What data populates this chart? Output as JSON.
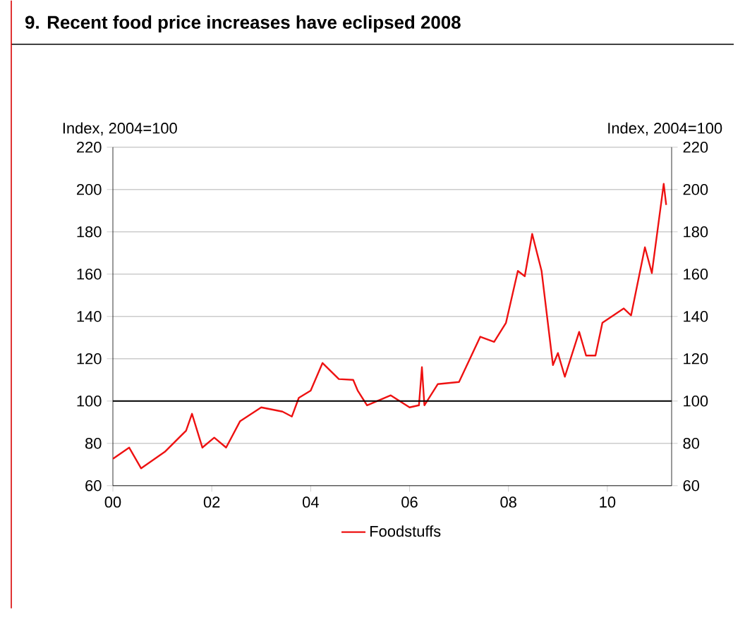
{
  "chart_data": {
    "type": "line",
    "title": "9. Recent food price increases have eclipsed 2008",
    "ylabel": "Index, 2004=100",
    "y2label": "Index, 2004=100",
    "x": [
      2000.0,
      2000.33,
      2000.57,
      2001.05,
      2001.48,
      2001.6,
      2001.81,
      2002.05,
      2002.29,
      2002.57,
      2003.0,
      2003.43,
      2003.62,
      2003.76,
      2004.0,
      2004.24,
      2004.57,
      2004.86,
      2004.95,
      2005.14,
      2005.62,
      2006.0,
      2006.19,
      2006.25,
      2006.3,
      2006.57,
      2007.0,
      2007.43,
      2007.71,
      2007.95,
      2008.19,
      2008.33,
      2008.48,
      2008.67,
      2008.9,
      2009.0,
      2009.14,
      2009.43,
      2009.57,
      2009.76,
      2009.9,
      2010.33,
      2010.48,
      2010.76,
      2010.9,
      2011.14,
      2011.19
    ],
    "series": [
      {
        "name": "Foodstuffs",
        "color": "#ee1111",
        "values": [
          72.7,
          78,
          68.2,
          76,
          86,
          94,
          78,
          82.7,
          78,
          90.4,
          97,
          95,
          92.7,
          101.5,
          104.9,
          118,
          110.4,
          110,
          105,
          98,
          102.7,
          97,
          98,
          116,
          98,
          108,
          109,
          130.4,
          128,
          137,
          161.5,
          159,
          179,
          161.5,
          117,
          122.7,
          111.5,
          132.7,
          121.5,
          121.5,
          137,
          143.8,
          140.5,
          172.7,
          160.5,
          202.7,
          192.7
        ]
      }
    ],
    "xlim": [
      2000,
      2011.3
    ],
    "xticks": [
      {
        "value": 2000,
        "label": "00"
      },
      {
        "value": 2002,
        "label": "02"
      },
      {
        "value": 2004,
        "label": "04"
      },
      {
        "value": 2006,
        "label": "06"
      },
      {
        "value": 2008,
        "label": "08"
      },
      {
        "value": 2010,
        "label": "10"
      }
    ],
    "ylim": [
      60,
      220
    ],
    "yticks": [
      60,
      80,
      100,
      120,
      140,
      160,
      180,
      200,
      220
    ],
    "y2lim": [
      60,
      220
    ],
    "y2ticks": [
      60,
      80,
      100,
      120,
      140,
      160,
      180,
      200,
      220
    ],
    "ref_lines": [
      {
        "axis": "y",
        "value": 100,
        "color": "#000000"
      }
    ],
    "grid": "y",
    "legend": "bottom",
    "marker": "none",
    "line_style": "solid"
  }
}
